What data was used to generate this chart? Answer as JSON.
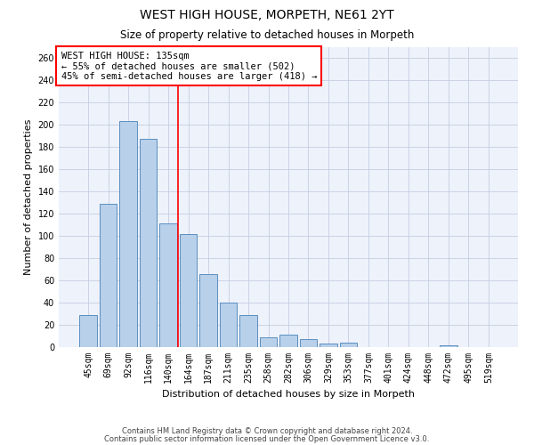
{
  "title": "WEST HIGH HOUSE, MORPETH, NE61 2YT",
  "subtitle": "Size of property relative to detached houses in Morpeth",
  "xlabel": "Distribution of detached houses by size in Morpeth",
  "ylabel": "Number of detached properties",
  "categories": [
    "45sqm",
    "69sqm",
    "92sqm",
    "116sqm",
    "140sqm",
    "164sqm",
    "187sqm",
    "211sqm",
    "235sqm",
    "258sqm",
    "282sqm",
    "306sqm",
    "329sqm",
    "353sqm",
    "377sqm",
    "401sqm",
    "424sqm",
    "448sqm",
    "472sqm",
    "495sqm",
    "519sqm"
  ],
  "values": [
    29,
    129,
    203,
    187,
    111,
    102,
    66,
    40,
    29,
    9,
    11,
    7,
    3,
    4,
    0,
    0,
    0,
    0,
    2,
    0,
    0
  ],
  "bar_color": "#b8d0ea",
  "bar_edge_color": "#5a8fc0",
  "vline_color": "red",
  "vline_position": 4.5,
  "annotation_text": "WEST HIGH HOUSE: 135sqm\n← 55% of detached houses are smaller (502)\n45% of semi-detached houses are larger (418) →",
  "annotation_box_color": "white",
  "annotation_box_edge_color": "red",
  "ylim": [
    0,
    270
  ],
  "yticks": [
    0,
    20,
    40,
    60,
    80,
    100,
    120,
    140,
    160,
    180,
    200,
    220,
    240,
    260
  ],
  "footer_line1": "Contains HM Land Registry data © Crown copyright and database right 2024.",
  "footer_line2": "Contains public sector information licensed under the Open Government Licence v3.0.",
  "bg_color": "#eef2fb",
  "grid_color": "#c5cde0",
  "title_fontsize": 10,
  "subtitle_fontsize": 8.5,
  "xlabel_fontsize": 8,
  "ylabel_fontsize": 8,
  "tick_fontsize": 7,
  "annotation_fontsize": 7.5,
  "footer_fontsize": 6
}
